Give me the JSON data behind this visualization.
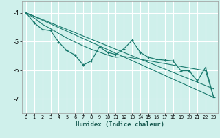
{
  "xlabel": "Humidex (Indice chaleur)",
  "bg_color": "#cff0eb",
  "grid_color": "#ffffff",
  "line_color": "#1a7a6e",
  "xlim": [
    -0.5,
    23.5
  ],
  "ylim": [
    -7.5,
    -3.6
  ],
  "xticks": [
    0,
    1,
    2,
    3,
    4,
    5,
    6,
    7,
    8,
    9,
    10,
    11,
    12,
    13,
    14,
    15,
    16,
    17,
    18,
    19,
    20,
    21,
    22,
    23
  ],
  "yticks": [
    -7,
    -6,
    -5,
    -4
  ],
  "main_x": [
    0,
    1,
    2,
    3,
    4,
    5,
    6,
    7,
    8,
    9,
    10,
    11,
    12,
    13,
    14,
    15,
    16,
    17,
    18,
    19,
    20,
    21,
    22,
    23
  ],
  "main_y": [
    -4.0,
    -4.35,
    -4.58,
    -4.62,
    -5.02,
    -5.32,
    -5.47,
    -5.82,
    -5.68,
    -5.18,
    -5.38,
    -5.45,
    -5.25,
    -4.96,
    -5.38,
    -5.55,
    -5.62,
    -5.65,
    -5.68,
    -6.02,
    -6.02,
    -6.38,
    -5.9,
    -6.95
  ],
  "trend1_x": [
    0,
    23
  ],
  "trend1_y": [
    -4.0,
    -6.95
  ],
  "trend2_x": [
    0,
    23
  ],
  "trend2_y": [
    -4.0,
    -6.65
  ],
  "smooth_x": [
    0,
    1,
    2,
    3,
    4,
    5,
    6,
    7,
    8,
    9,
    10,
    11,
    12,
    13,
    14,
    15,
    16,
    17,
    18,
    19,
    20,
    21,
    22,
    23
  ],
  "smooth_y": [
    -4.0,
    -4.18,
    -4.4,
    -4.55,
    -4.72,
    -4.88,
    -5.02,
    -5.15,
    -5.27,
    -5.37,
    -5.47,
    -5.55,
    -5.52,
    -5.57,
    -5.62,
    -5.67,
    -5.72,
    -5.77,
    -5.82,
    -5.87,
    -5.92,
    -5.97,
    -6.02,
    -6.95
  ]
}
